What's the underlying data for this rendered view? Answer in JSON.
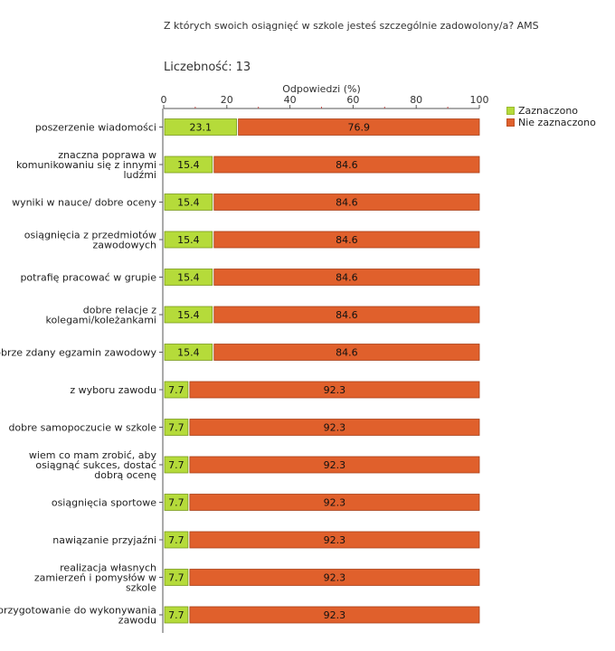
{
  "title": "Z których swoich osiągnięć w szkole jesteś szczególnie zadowolony/a? AMS",
  "count_label": "Liczebność:",
  "count_value": "13",
  "colors": {
    "selected": "#b5db3a",
    "not_selected": "#e0602c",
    "axis": "#555555"
  },
  "chart_data": {
    "type": "bar",
    "orientation": "horizontal",
    "stacked": true,
    "xlabel": "Odpowiedzi (%)",
    "xlim": [
      0,
      100
    ],
    "x_ticks": [
      0,
      20,
      40,
      60,
      80,
      100
    ],
    "categories": [
      "poszerzenie wiadomości",
      "znaczna poprawa w komunikowaniu się z innymi ludźmi",
      "wyniki w nauce/ dobre oceny",
      "osiągnięcia z przedmiotów zawodowych",
      "potrafię pracować w grupie",
      "dobre relacje z kolegami/koleżankami",
      "dobrze zdany egzamin zawodowy",
      "z wyboru zawodu",
      "dobre samopoczucie w szkole",
      "wiem co mam zrobić, aby osiągnąć sukces, dostać dobrą ocenę",
      "osiągnięcia sportowe",
      "nawiązanie przyjaźni",
      "realizacja własnych zamierzeń i pomysłów w szkole",
      "przygotowanie do wykonywania zawodu"
    ],
    "category_lines": [
      [
        "poszerzenie wiadomości"
      ],
      [
        "znaczna poprawa w",
        "komunikowaniu się z innymi",
        "ludźmi"
      ],
      [
        "wyniki w nauce/ dobre oceny"
      ],
      [
        "osiągnięcia z przedmiotów",
        "zawodowych"
      ],
      [
        "potrafię pracować w grupie"
      ],
      [
        "dobre relacje z",
        "kolegami/koleżankami"
      ],
      [
        "dobrze zdany egzamin zawodowy"
      ],
      [
        "z wyboru zawodu"
      ],
      [
        "dobre samopoczucie w szkole"
      ],
      [
        "wiem co mam zrobić, aby",
        "osiągnąć sukces, dostać",
        "dobrą ocenę"
      ],
      [
        "osiągnięcia sportowe"
      ],
      [
        "nawiązanie przyjaźni"
      ],
      [
        "realizacja własnych",
        "zamierzeń i pomysłów w",
        "szkole"
      ],
      [
        "przygotowanie do wykonywania",
        "zawodu"
      ]
    ],
    "series": [
      {
        "name": "Zaznaczono",
        "values": [
          23.1,
          15.4,
          15.4,
          15.4,
          15.4,
          15.4,
          15.4,
          7.7,
          7.7,
          7.7,
          7.7,
          7.7,
          7.7,
          7.7
        ]
      },
      {
        "name": "Nie zaznaczono",
        "values": [
          76.9,
          84.6,
          84.6,
          84.6,
          84.6,
          84.6,
          84.6,
          92.3,
          92.3,
          92.3,
          92.3,
          92.3,
          92.3,
          92.3
        ]
      }
    ],
    "legend_position": "top-right"
  }
}
